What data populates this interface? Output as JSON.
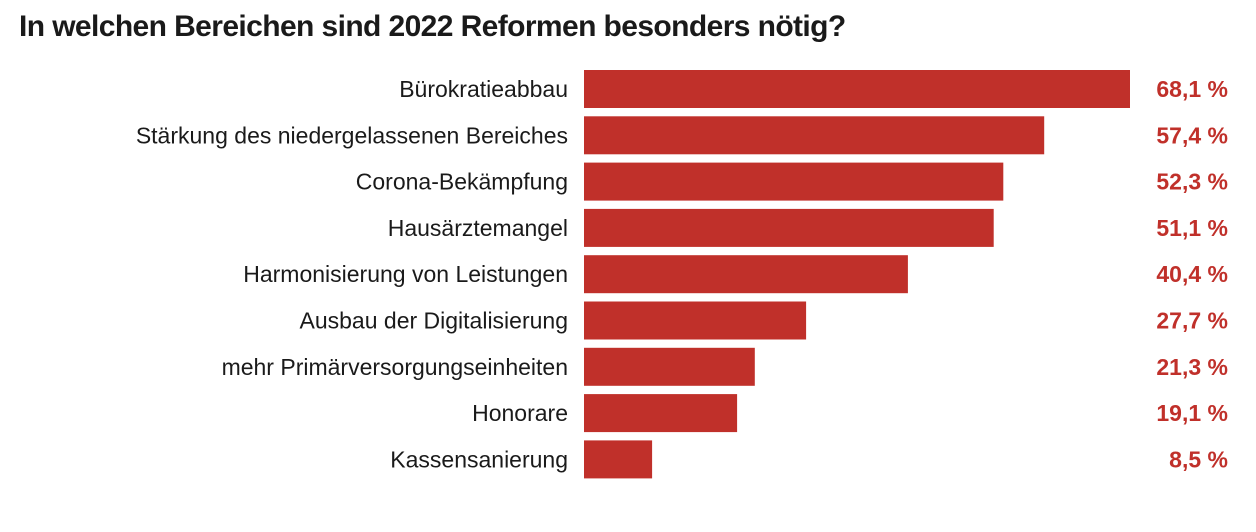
{
  "chart_data": {
    "type": "bar",
    "orientation": "horizontal",
    "title": "In welchen Bereichen sind 2022 Reformen besonders nötig?",
    "categories": [
      "Bürokratieabbau",
      "Stärkung des niedergelassenen Bereiches",
      "Corona-Bekämpfung",
      "Hausärztemangel",
      "Harmonisierung von Leistungen",
      "Ausbau der Digitalisierung",
      "mehr Primärversorgungseinheiten",
      "Honorare",
      "Kassensanierung"
    ],
    "values": [
      68.1,
      57.4,
      52.3,
      51.1,
      40.4,
      27.7,
      21.3,
      19.1,
      8.5
    ],
    "value_labels": [
      "68,1 %",
      "57,4 %",
      "52,3 %",
      "51,1 %",
      "40,4 %",
      "27,7 %",
      "21,3 %",
      "19,1 %",
      "8,5 %"
    ],
    "xlim": [
      0,
      68.1
    ],
    "grid": false,
    "legend": "none",
    "bar_color": "#c0302a",
    "value_label_color": "#c0302a"
  }
}
